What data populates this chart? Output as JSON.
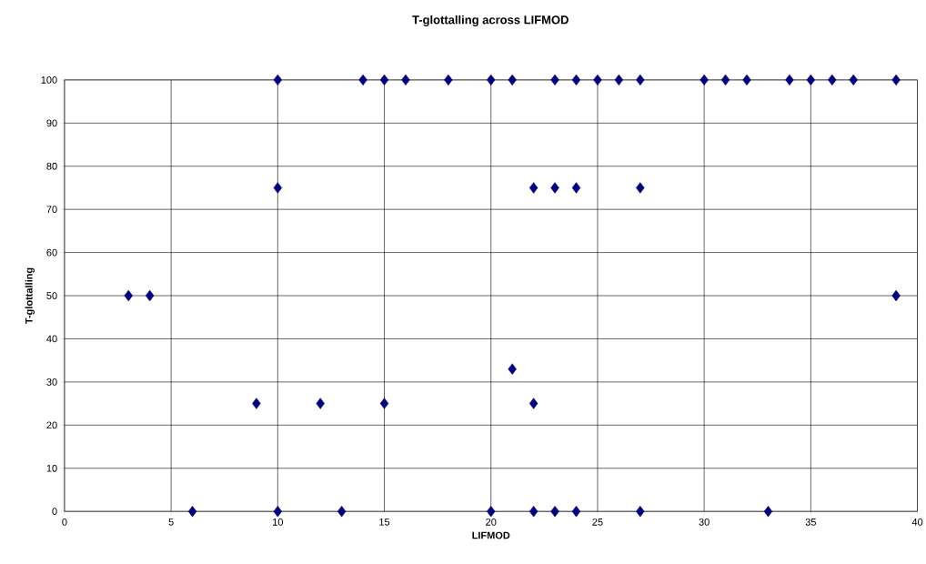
{
  "chart_data": {
    "type": "scatter",
    "title": "T-glottalling across LIFMOD",
    "xlabel": "LIFMOD",
    "ylabel": "T-glottalling",
    "x": [
      3,
      4,
      6,
      9,
      10,
      10,
      10,
      12,
      13,
      14,
      15,
      15,
      16,
      18,
      20,
      20,
      21,
      21,
      22,
      22,
      22,
      23,
      23,
      23,
      24,
      24,
      24,
      25,
      26,
      27,
      27,
      27,
      30,
      31,
      32,
      33,
      34,
      35,
      36,
      37,
      39,
      39
    ],
    "series": [
      {
        "color": "#000080",
        "values": [
          50,
          50,
          0,
          25,
          100,
          75,
          0,
          25,
          0,
          100,
          100,
          25,
          100,
          100,
          100,
          0,
          100,
          33,
          75,
          25,
          0,
          100,
          75,
          0,
          100,
          75,
          0,
          100,
          100,
          100,
          75,
          0,
          100,
          100,
          100,
          0,
          100,
          100,
          100,
          100,
          100,
          50
        ]
      }
    ],
    "xlim": [
      0,
      40
    ],
    "xticks": [
      0,
      5,
      10,
      15,
      20,
      25,
      30,
      35,
      40
    ],
    "ylim": [
      0,
      100
    ],
    "yticks": [
      0,
      10,
      20,
      30,
      40,
      50,
      60,
      70,
      80,
      90,
      100
    ],
    "grid": true,
    "marker": "diamond"
  }
}
